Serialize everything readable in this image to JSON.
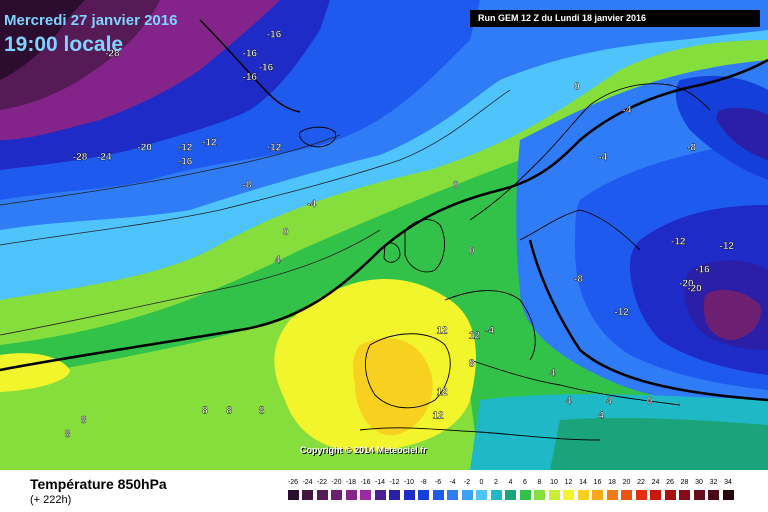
{
  "header": {
    "date": "Mercredi 27 janvier 2016",
    "time": "19:00 locale",
    "run": "Run GEM 12 Z du Lundi 18 janvier 2016"
  },
  "footer": {
    "field": "Température 850hPa",
    "lead": "(+ 222h)"
  },
  "copyright": "Copyright © 2014 Meteociel.fr",
  "legend": [
    {
      "label": "-26",
      "color": "#2d0d2f"
    },
    {
      "label": "-24",
      "color": "#411442"
    },
    {
      "label": "-22",
      "color": "#561a57"
    },
    {
      "label": "-20",
      "color": "#6d1f71"
    },
    {
      "label": "-18",
      "color": "#84248a"
    },
    {
      "label": "-16",
      "color": "#9b2ba1"
    },
    {
      "label": "-14",
      "color": "#4a1f8f"
    },
    {
      "label": "-12",
      "color": "#2a1fa6"
    },
    {
      "label": "-10",
      "color": "#1e2bc6"
    },
    {
      "label": "-8",
      "color": "#1440d9"
    },
    {
      "label": "-6",
      "color": "#1f5aee"
    },
    {
      "label": "-4",
      "color": "#2f7cf6"
    },
    {
      "label": "-2",
      "color": "#3fa0fa"
    },
    {
      "label": "0",
      "color": "#4fc3fb"
    },
    {
      "label": "2",
      "color": "#1fb8c6"
    },
    {
      "label": "4",
      "color": "#1ba37b"
    },
    {
      "label": "6",
      "color": "#32c24a"
    },
    {
      "label": "8",
      "color": "#86de3c"
    },
    {
      "label": "10",
      "color": "#c6ee32"
    },
    {
      "label": "12",
      "color": "#f2f42c"
    },
    {
      "label": "14",
      "color": "#f8d020"
    },
    {
      "label": "16",
      "color": "#f8a818"
    },
    {
      "label": "18",
      "color": "#f27c14"
    },
    {
      "label": "20",
      "color": "#ea5410"
    },
    {
      "label": "22",
      "color": "#e0300e"
    },
    {
      "label": "24",
      "color": "#c8180c"
    },
    {
      "label": "26",
      "color": "#a8100e"
    },
    {
      "label": "28",
      "color": "#880c18"
    },
    {
      "label": "30",
      "color": "#6a0a1c"
    },
    {
      "label": "32",
      "color": "#4a0816"
    },
    {
      "label": "34",
      "color": "#2a040c"
    }
  ],
  "isotherm_labels": [
    {
      "text": "-28",
      "lon": -42,
      "lat": 72
    },
    {
      "text": "-16",
      "lon": -22,
      "lat": 74
    },
    {
      "text": "-16",
      "lon": -25,
      "lat": 72
    },
    {
      "text": "-16",
      "lon": -23,
      "lat": 70.5
    },
    {
      "text": "-16",
      "lon": -25,
      "lat": 69.5
    },
    {
      "text": "-28",
      "lon": -46,
      "lat": 61
    },
    {
      "text": "-24",
      "lon": -43,
      "lat": 61
    },
    {
      "text": "-20",
      "lon": -38,
      "lat": 62
    },
    {
      "text": "-12",
      "lon": -33,
      "lat": 62
    },
    {
      "text": "-12",
      "lon": -30,
      "lat": 62.5
    },
    {
      "text": "-16",
      "lon": -33,
      "lat": 60.5
    },
    {
      "text": "-12",
      "lon": -22,
      "lat": 62
    },
    {
      "text": "-8",
      "lon": -25,
      "lat": 58
    },
    {
      "text": "-4",
      "lon": -17,
      "lat": 56
    },
    {
      "text": "0",
      "lon": -20,
      "lat": 53
    },
    {
      "text": "4",
      "lon": -21,
      "lat": 50
    },
    {
      "text": "0",
      "lon": 1,
      "lat": 58
    },
    {
      "text": "0",
      "lon": 16,
      "lat": 68.5
    },
    {
      "text": "-4",
      "lon": 22,
      "lat": 66
    },
    {
      "text": "-4",
      "lon": 19,
      "lat": 61
    },
    {
      "text": "-8",
      "lon": 30,
      "lat": 62
    },
    {
      "text": "0",
      "lon": 3,
      "lat": 51
    },
    {
      "text": "-12",
      "lon": 28,
      "lat": 52
    },
    {
      "text": "-12",
      "lon": 34,
      "lat": 51.5
    },
    {
      "text": "-16",
      "lon": 31,
      "lat": 49
    },
    {
      "text": "-20",
      "lon": 29,
      "lat": 47.5
    },
    {
      "text": "-20",
      "lon": 30,
      "lat": 47
    },
    {
      "text": "-8",
      "lon": 16,
      "lat": 48
    },
    {
      "text": "-12",
      "lon": 21,
      "lat": 44.5
    },
    {
      "text": "12",
      "lon": -1,
      "lat": 42.5
    },
    {
      "text": "12",
      "lon": 3,
      "lat": 42
    },
    {
      "text": "-4",
      "lon": 5,
      "lat": 42.5
    },
    {
      "text": "8",
      "lon": 3,
      "lat": 39
    },
    {
      "text": "12",
      "lon": -1,
      "lat": 36
    },
    {
      "text": "12",
      "lon": -1.5,
      "lat": 33.5
    },
    {
      "text": "4",
      "lon": 13,
      "lat": 38
    },
    {
      "text": "4",
      "lon": 15,
      "lat": 35
    },
    {
      "text": "4",
      "lon": 20,
      "lat": 35
    },
    {
      "text": "0",
      "lon": 25,
      "lat": 35
    },
    {
      "text": "8",
      "lon": -30,
      "lat": 34
    },
    {
      "text": "8",
      "lon": -27,
      "lat": 34
    },
    {
      "text": "8",
      "lon": -23,
      "lat": 34
    },
    {
      "text": "8",
      "lon": -45,
      "lat": 33
    },
    {
      "text": "8",
      "lon": -47,
      "lat": 31.5
    },
    {
      "text": "4",
      "lon": 19,
      "lat": 33.5
    }
  ]
}
